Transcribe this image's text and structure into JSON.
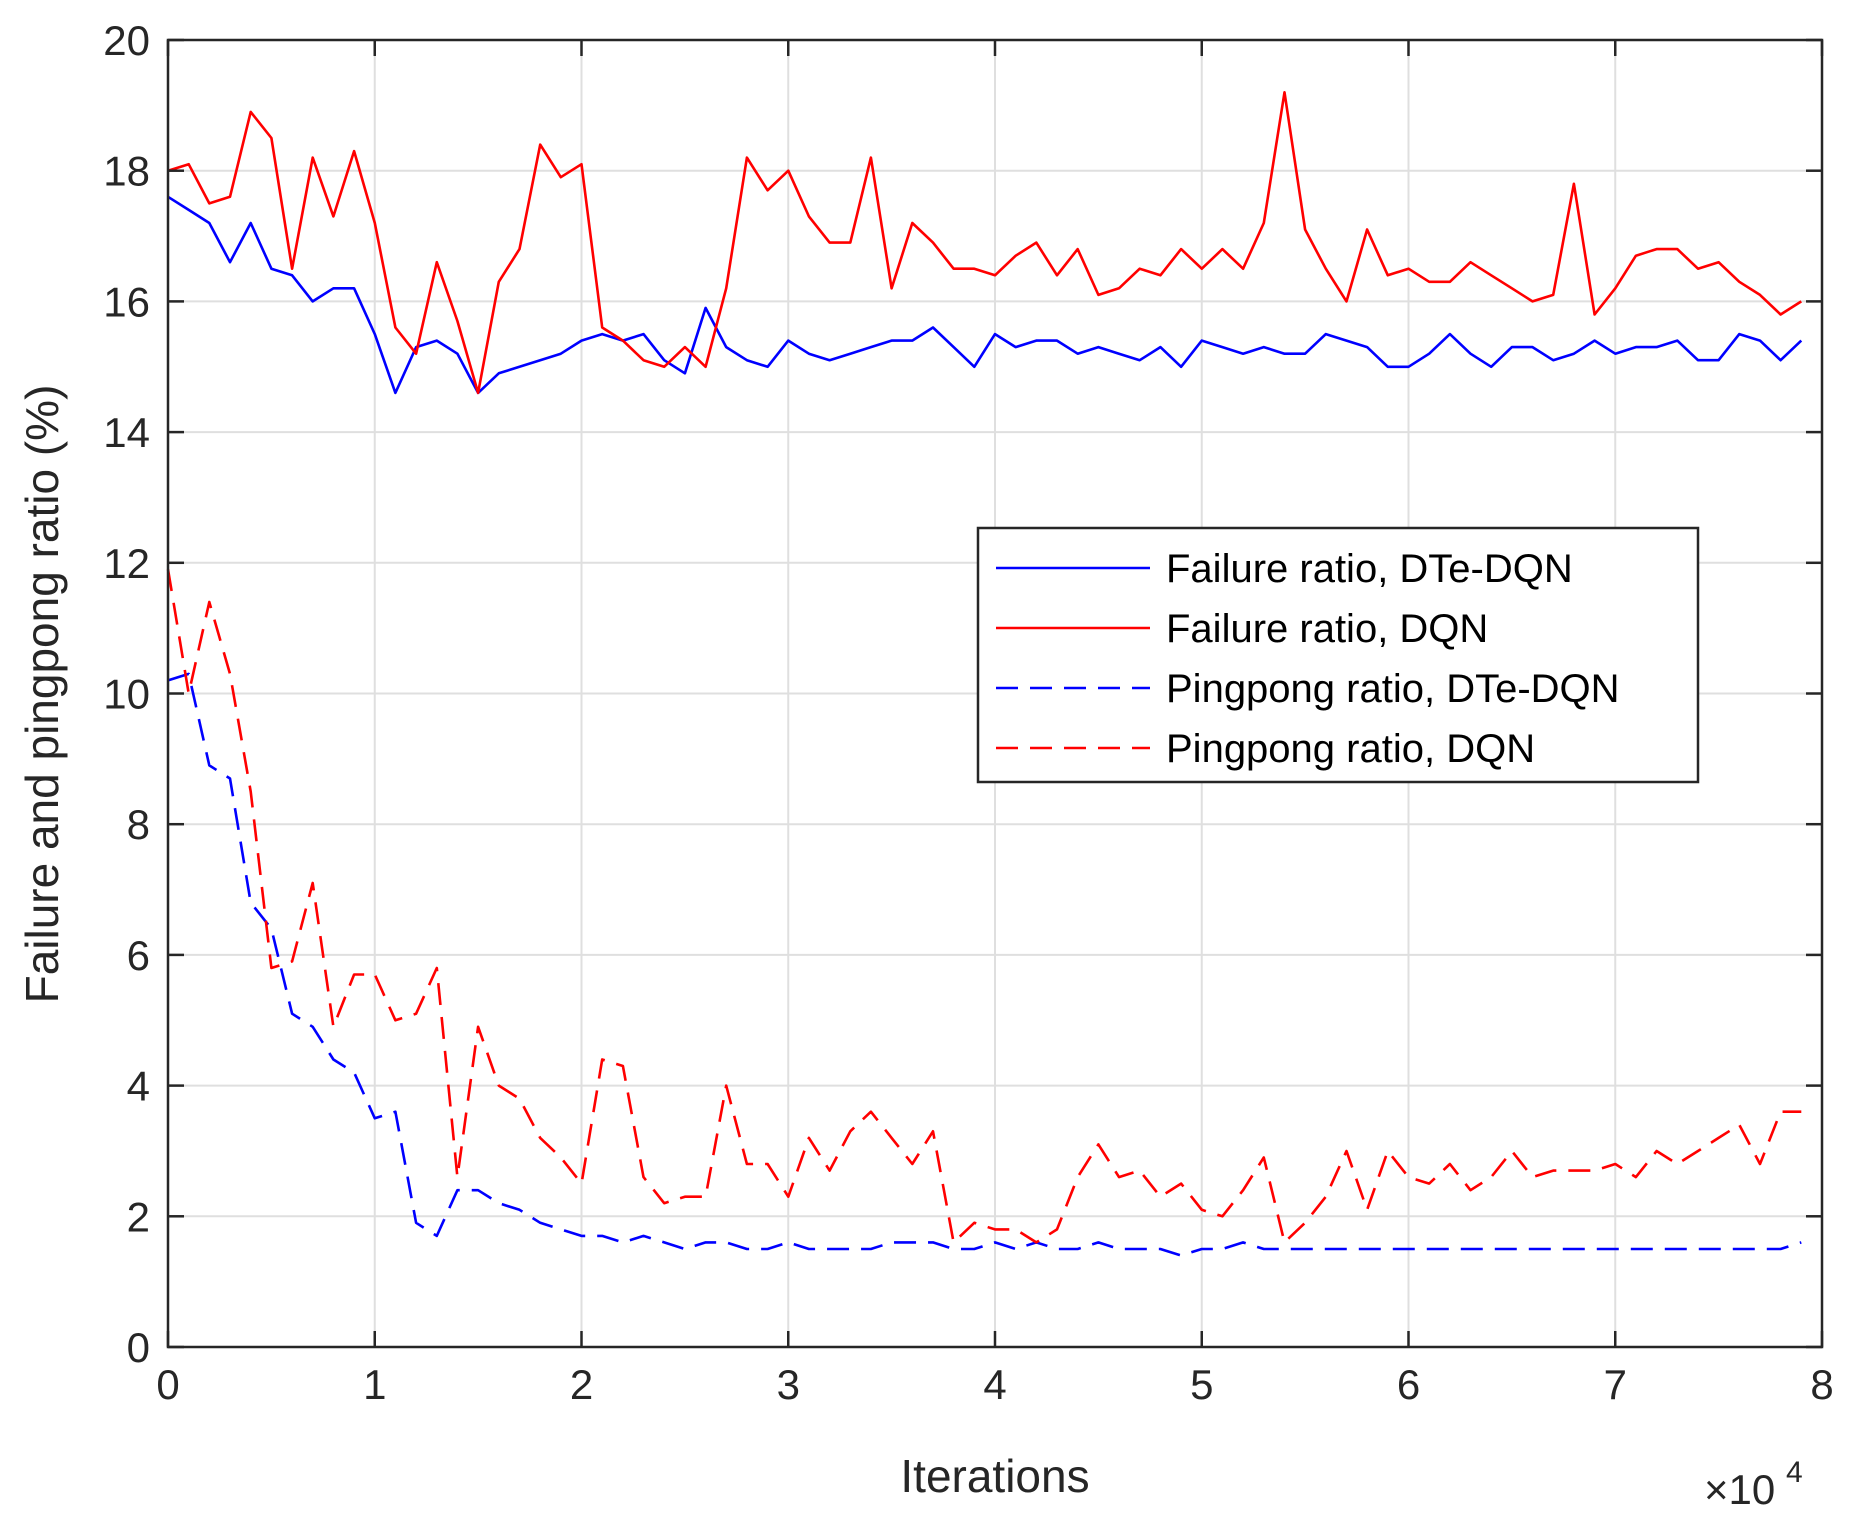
{
  "chart_data": {
    "type": "line",
    "title": "",
    "xlabel": "Iterations",
    "ylabel": "Failure and pingpong ratio (%)",
    "x_exponent_label": {
      "base": "×10",
      "exponent": "4"
    },
    "xlim": [
      0,
      8
    ],
    "ylim": [
      0,
      20
    ],
    "xticks": [
      0,
      1,
      2,
      3,
      4,
      5,
      6,
      7,
      8
    ],
    "yticks": [
      0,
      2,
      4,
      6,
      8,
      10,
      12,
      14,
      16,
      18,
      20
    ],
    "grid": true,
    "legend_position": "center-right",
    "x": [
      0,
      0.1,
      0.2,
      0.3,
      0.4,
      0.5,
      0.6,
      0.7,
      0.8,
      0.9,
      1,
      1.1,
      1.2,
      1.3,
      1.4,
      1.5,
      1.6,
      1.7,
      1.8,
      1.9,
      2,
      2.1,
      2.2,
      2.3,
      2.4,
      2.5,
      2.6,
      2.7,
      2.8,
      2.9,
      3,
      3.1,
      3.2,
      3.3,
      3.4,
      3.5,
      3.6,
      3.7,
      3.8,
      3.9,
      4,
      4.1,
      4.2,
      4.3,
      4.4,
      4.5,
      4.6,
      4.7,
      4.8,
      4.9,
      5,
      5.1,
      5.2,
      5.3,
      5.4,
      5.5,
      5.6,
      5.7,
      5.8,
      5.9,
      6,
      6.1,
      6.2,
      6.3,
      6.4,
      6.5,
      6.6,
      6.7,
      6.8,
      6.9,
      7,
      7.1,
      7.2,
      7.3,
      7.4,
      7.5,
      7.6,
      7.7,
      7.8,
      7.9
    ],
    "series": [
      {
        "name": "Failure ratio, DTe-DQN",
        "color": "#0000ff",
        "dash": "solid",
        "values": [
          17.6,
          17.4,
          17.2,
          16.6,
          17.2,
          16.5,
          16.4,
          16.0,
          16.2,
          16.2,
          15.5,
          14.6,
          15.3,
          15.4,
          15.2,
          14.6,
          14.9,
          15.0,
          15.1,
          15.2,
          15.4,
          15.5,
          15.4,
          15.5,
          15.1,
          14.9,
          15.9,
          15.3,
          15.1,
          15.0,
          15.4,
          15.2,
          15.1,
          15.2,
          15.3,
          15.4,
          15.4,
          15.6,
          15.3,
          15.0,
          15.5,
          15.3,
          15.4,
          15.4,
          15.2,
          15.3,
          15.2,
          15.1,
          15.3,
          15.0,
          15.4,
          15.3,
          15.2,
          15.3,
          15.2,
          15.2,
          15.5,
          15.4,
          15.3,
          15.0,
          15.0,
          15.2,
          15.5,
          15.2,
          15.0,
          15.3,
          15.3,
          15.1,
          15.2,
          15.4,
          15.2,
          15.3,
          15.3,
          15.4,
          15.1,
          15.1,
          15.5,
          15.4,
          15.1,
          15.4
        ]
      },
      {
        "name": "Failure ratio, DQN",
        "color": "#ff0000",
        "dash": "solid",
        "values": [
          18.0,
          18.1,
          17.5,
          17.6,
          18.9,
          18.5,
          16.5,
          18.2,
          17.3,
          18.3,
          17.2,
          15.6,
          15.2,
          16.6,
          15.7,
          14.6,
          16.3,
          16.8,
          18.4,
          17.9,
          18.1,
          15.6,
          15.4,
          15.1,
          15.0,
          15.3,
          15.0,
          16.2,
          18.2,
          17.7,
          18.0,
          17.3,
          16.9,
          16.9,
          18.2,
          16.2,
          17.2,
          16.9,
          16.5,
          16.5,
          16.4,
          16.7,
          16.9,
          16.4,
          16.8,
          16.1,
          16.2,
          16.5,
          16.4,
          16.8,
          16.5,
          16.8,
          16.5,
          17.2,
          19.2,
          17.1,
          16.5,
          16.0,
          17.1,
          16.4,
          16.5,
          16.3,
          16.3,
          16.6,
          16.4,
          16.2,
          16.0,
          16.1,
          17.8,
          15.8,
          16.2,
          16.7,
          16.8,
          16.8,
          16.5,
          16.6,
          16.3,
          16.1,
          15.8,
          16.0
        ]
      },
      {
        "name": "Pingpong ratio, DTe-DQN",
        "color": "#0000ff",
        "dash": "dashed",
        "values": [
          10.2,
          10.3,
          8.9,
          8.7,
          6.8,
          6.4,
          5.1,
          4.9,
          4.4,
          4.2,
          3.5,
          3.6,
          1.9,
          1.7,
          2.4,
          2.4,
          2.2,
          2.1,
          1.9,
          1.8,
          1.7,
          1.7,
          1.6,
          1.7,
          1.6,
          1.5,
          1.6,
          1.6,
          1.5,
          1.5,
          1.6,
          1.5,
          1.5,
          1.5,
          1.5,
          1.6,
          1.6,
          1.6,
          1.5,
          1.5,
          1.6,
          1.5,
          1.6,
          1.5,
          1.5,
          1.6,
          1.5,
          1.5,
          1.5,
          1.4,
          1.5,
          1.5,
          1.6,
          1.5,
          1.5,
          1.5,
          1.5,
          1.5,
          1.5,
          1.5,
          1.5,
          1.5,
          1.5,
          1.5,
          1.5,
          1.5,
          1.5,
          1.5,
          1.5,
          1.5,
          1.5,
          1.5,
          1.5,
          1.5,
          1.5,
          1.5,
          1.5,
          1.5,
          1.5,
          1.6
        ]
      },
      {
        "name": "Pingpong ratio, DQN",
        "color": "#ff0000",
        "dash": "dashed",
        "values": [
          11.9,
          10.0,
          11.4,
          10.3,
          8.5,
          5.8,
          5.9,
          7.1,
          4.9,
          5.7,
          5.7,
          5.0,
          5.1,
          5.8,
          2.6,
          4.9,
          4.0,
          3.8,
          3.2,
          2.9,
          2.5,
          4.4,
          4.3,
          2.6,
          2.2,
          2.3,
          2.3,
          4.0,
          2.8,
          2.8,
          2.3,
          3.2,
          2.7,
          3.3,
          3.6,
          3.2,
          2.8,
          3.3,
          1.6,
          1.9,
          1.8,
          1.8,
          1.6,
          1.8,
          2.6,
          3.1,
          2.6,
          2.7,
          2.3,
          2.5,
          2.1,
          2.0,
          2.4,
          2.9,
          1.6,
          1.9,
          2.3,
          3.0,
          2.1,
          3.0,
          2.6,
          2.5,
          2.8,
          2.4,
          2.6,
          3.0,
          2.6,
          2.7,
          2.7,
          2.7,
          2.8,
          2.6,
          3.0,
          2.8,
          3.0,
          3.2,
          3.4,
          2.8,
          3.6,
          3.6
        ]
      }
    ]
  }
}
